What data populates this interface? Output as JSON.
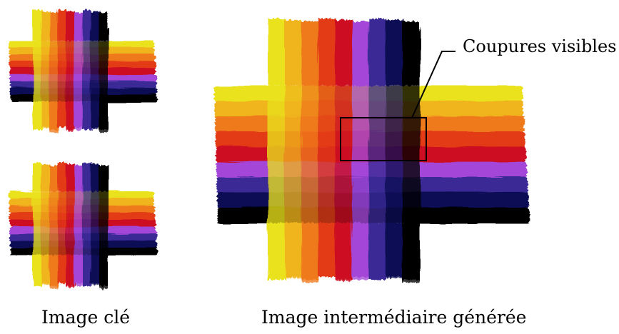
{
  "captions": {
    "key_image": "Image clé",
    "generated_image": "Image intermédiaire générée"
  },
  "annotation": {
    "label": "Coupures visibles"
  },
  "palette": [
    "#e9e21a",
    "#f0b41c",
    "#ef7a1c",
    "#e23a16",
    "#cc0c24",
    "#a447d8",
    "#3a2a96",
    "#0b0b55",
    "#050505"
  ],
  "frame_color": "#000000",
  "figures": [
    {
      "name": "key-image-top",
      "role": "key image"
    },
    {
      "name": "key-image-bottom",
      "role": "key image"
    },
    {
      "name": "generated-image",
      "role": "generated intermediate image"
    }
  ]
}
